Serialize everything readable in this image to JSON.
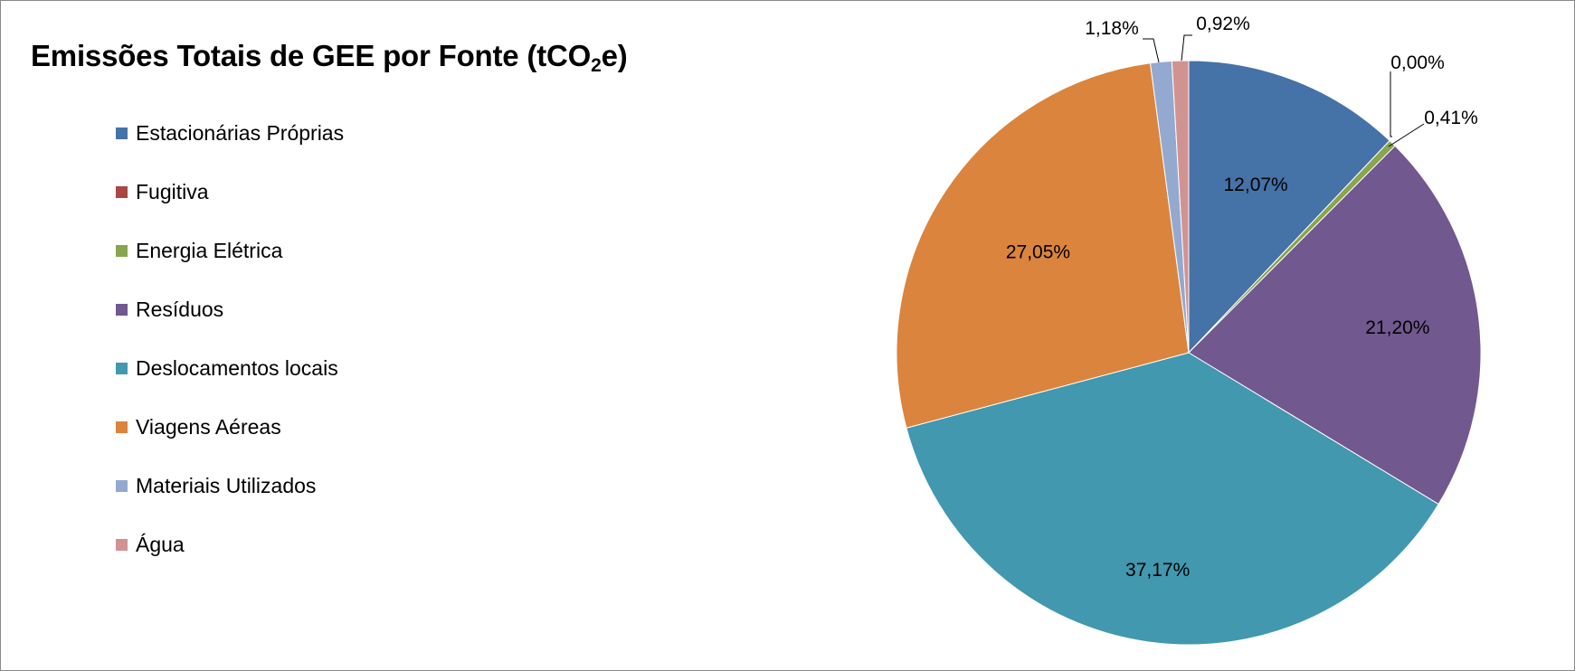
{
  "chart_data": {
    "type": "pie",
    "title_main": "Emissões Totais de GEE por Fonte (tCO",
    "title_sub": "2",
    "title_end": "e)",
    "legend_position": "left",
    "categories": [
      "Estacionárias Próprias",
      "Fugitiva",
      "Energia Elétrica",
      "Resíduos",
      "Deslocamentos locais",
      "Viagens Aéreas",
      "Materiais Utilizados",
      "Água"
    ],
    "values": [
      12.07,
      0.0,
      0.41,
      21.2,
      37.17,
      27.05,
      1.18,
      0.92
    ],
    "data_labels": [
      "12,07%",
      "0,00%",
      "0,41%",
      "21,20%",
      "37,17%",
      "27,05%",
      "1,18%",
      "0,92%"
    ],
    "colors": [
      "#4572a7",
      "#aa4643",
      "#89a54e",
      "#71588f",
      "#4198af",
      "#db843d",
      "#93a9cf",
      "#d19392"
    ]
  }
}
